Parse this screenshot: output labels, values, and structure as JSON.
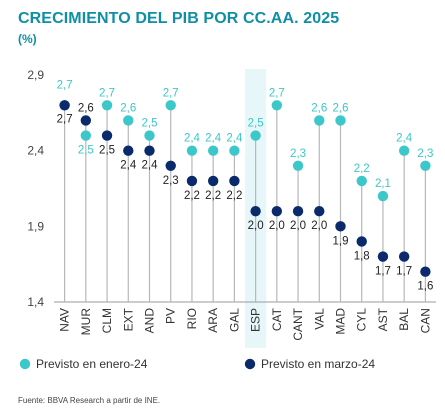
{
  "title": "CRECIMIENTO DEL PIB POR CC.AA. 2025",
  "subtitle": "(%)",
  "source": "Fuente: BBVA Research a partir de INE.",
  "colors": {
    "enero": "#3cc8c8",
    "marzo": "#0a2a6b",
    "highlight": "#e6f6f9",
    "line": "#b8b8b8",
    "title": "#0f8fa5"
  },
  "chart_data": {
    "type": "dot-plot",
    "title": "CRECIMIENTO DEL PIB POR CC.AA. 2025",
    "ylabel": "(%)",
    "ylim": [
      1.4,
      2.9
    ],
    "yticks": [
      1.4,
      1.9,
      2.4,
      2.9
    ],
    "ytick_labels": [
      "1,4",
      "1,9",
      "2,4",
      "2,9"
    ],
    "categories": [
      "NAV",
      "MUR",
      "CLM",
      "EXT",
      "AND",
      "PV",
      "RIO",
      "ARA",
      "GAL",
      "ESP",
      "CAT",
      "CANT",
      "VAL",
      "MAD",
      "CYL",
      "AST",
      "BAL",
      "CAN"
    ],
    "highlight_category": "ESP",
    "series": [
      {
        "name": "Previsto en enero-24",
        "color": "#3cc8c8",
        "values": [
          2.7,
          2.5,
          2.7,
          2.6,
          2.5,
          2.7,
          2.4,
          2.4,
          2.4,
          2.5,
          2.7,
          2.3,
          2.6,
          2.6,
          2.2,
          2.1,
          2.4,
          2.3
        ],
        "labels": [
          "2,7",
          "2,5",
          "2,7",
          "2,6",
          "2,5",
          "2,7",
          "2,4",
          "2,4",
          "2,4",
          "2,5",
          "2,7",
          "2,3",
          "2,6",
          "2,6",
          "2,2",
          "2,1",
          "2,4",
          "2,3"
        ]
      },
      {
        "name": "Previsto en marzo-24",
        "color": "#0a2a6b",
        "values": [
          2.7,
          2.6,
          2.5,
          2.4,
          2.4,
          2.3,
          2.2,
          2.2,
          2.2,
          2.0,
          2.0,
          2.0,
          2.0,
          1.9,
          1.8,
          1.7,
          1.7,
          1.6
        ],
        "labels": [
          "2,7",
          "2,6",
          "2,5",
          "2,4",
          "2,4",
          "2,3",
          "2,2",
          "2,2",
          "2,2",
          "2,0",
          "2,0",
          "2,0",
          "2,0",
          "1,9",
          "1,8",
          "1,7",
          "1,7",
          "1,6"
        ]
      }
    ],
    "legend": "bottom",
    "grid": false
  }
}
